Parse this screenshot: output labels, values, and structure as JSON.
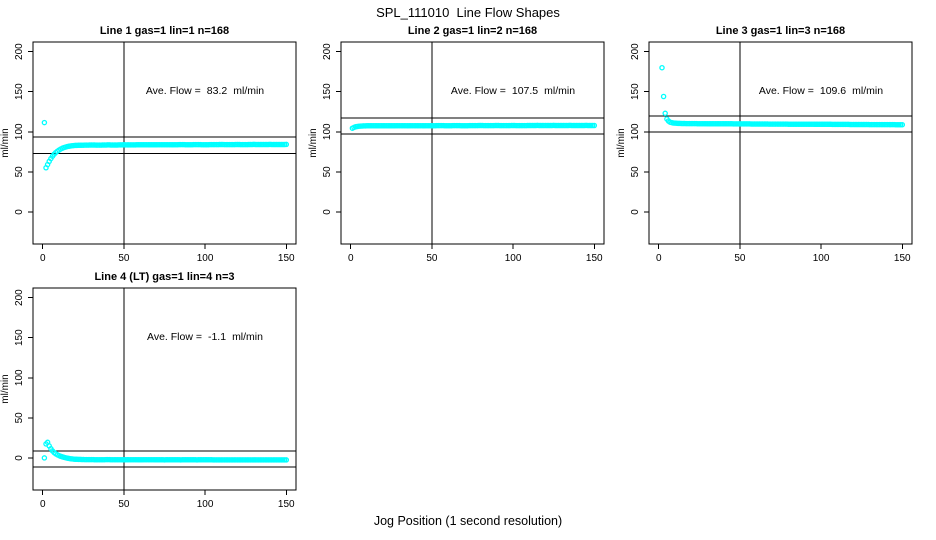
{
  "page": {
    "title": "SPL_111010  Line Flow Shapes",
    "xlabel": "Jog Position (1 second resolution)"
  },
  "palette": {
    "marker": "#00FFFF",
    "axis": "#000000",
    "background": "#FFFFFF"
  },
  "axes": {
    "xlim": [
      -6,
      156
    ],
    "ylim": [
      -40,
      212
    ],
    "xticks": [
      0,
      50,
      100,
      150
    ],
    "yticks": [
      0,
      50,
      100,
      150,
      200
    ],
    "ylabel": "ml/min"
  },
  "chart_data": [
    {
      "type": "scatter",
      "title": "Line 1 gas=1 lin=1 n=168",
      "ave_flow_label": "Ave. Flow =",
      "ave_flow_value": "83.2",
      "ave_flow_unit": "ml/min",
      "vline_x": 50,
      "hlines": [
        93.2,
        73.2
      ],
      "marker_color": "#00FFFF",
      "points": [
        [
          1,
          111.5
        ],
        [
          2,
          55
        ],
        [
          3,
          59
        ],
        [
          4,
          63
        ],
        [
          5,
          66.5
        ],
        [
          6,
          69.5
        ],
        [
          7,
          72
        ],
        [
          8,
          74
        ],
        [
          9,
          75.8
        ],
        [
          10,
          77.2
        ],
        [
          11,
          78.4
        ],
        [
          12,
          79.4
        ],
        [
          13,
          80.2
        ],
        [
          14,
          80.9
        ],
        [
          15,
          81.5
        ],
        [
          16,
          81.9
        ],
        [
          17,
          82.3
        ],
        [
          18,
          82.6
        ],
        [
          19,
          82.8
        ],
        [
          20,
          83
        ],
        [
          25,
          83.3
        ],
        [
          30,
          83.5
        ],
        [
          35,
          83.4
        ],
        [
          40,
          83.6
        ],
        [
          45,
          83.5
        ],
        [
          50,
          83.7
        ],
        [
          55,
          83.6
        ],
        [
          60,
          83.8
        ],
        [
          65,
          83.7
        ],
        [
          70,
          83.8
        ],
        [
          75,
          83.9
        ],
        [
          80,
          83.8
        ],
        [
          85,
          84
        ],
        [
          90,
          83.9
        ],
        [
          95,
          84
        ],
        [
          100,
          83.9
        ],
        [
          105,
          84
        ],
        [
          110,
          84.1
        ],
        [
          115,
          84
        ],
        [
          120,
          84.1
        ],
        [
          125,
          84
        ],
        [
          130,
          84.2
        ],
        [
          135,
          84.1
        ],
        [
          140,
          84.2
        ],
        [
          145,
          84.1
        ],
        [
          150,
          84.2
        ]
      ]
    },
    {
      "type": "scatter",
      "title": "Line 2 gas=1 lin=2 n=168",
      "ave_flow_label": "Ave. Flow =",
      "ave_flow_value": "107.5",
      "ave_flow_unit": "ml/min",
      "vline_x": 50,
      "hlines": [
        117.5,
        97.5
      ],
      "marker_color": "#00FFFF",
      "points": [
        [
          1,
          104.5
        ],
        [
          2,
          105.5
        ],
        [
          3,
          106.2
        ],
        [
          4,
          106.6
        ],
        [
          5,
          106.9
        ],
        [
          6,
          107.1
        ],
        [
          7,
          107.2
        ],
        [
          8,
          107.3
        ],
        [
          10,
          107.4
        ],
        [
          15,
          107.4
        ],
        [
          20,
          107.5
        ],
        [
          25,
          107.4
        ],
        [
          30,
          107.6
        ],
        [
          35,
          107.5
        ],
        [
          40,
          107.6
        ],
        [
          45,
          107.5
        ],
        [
          50,
          107.6
        ],
        [
          55,
          107.7
        ],
        [
          60,
          107.6
        ],
        [
          65,
          107.7
        ],
        [
          70,
          107.6
        ],
        [
          75,
          107.7
        ],
        [
          80,
          107.8
        ],
        [
          85,
          107.7
        ],
        [
          90,
          107.8
        ],
        [
          95,
          107.7
        ],
        [
          100,
          107.8
        ],
        [
          105,
          107.7
        ],
        [
          110,
          107.8
        ],
        [
          115,
          107.9
        ],
        [
          120,
          107.8
        ],
        [
          125,
          107.9
        ],
        [
          130,
          107.8
        ],
        [
          135,
          107.9
        ],
        [
          140,
          107.8
        ],
        [
          145,
          107.9
        ],
        [
          150,
          107.8
        ]
      ]
    },
    {
      "type": "scatter",
      "title": "Line 3 gas=1 lin=3 n=168",
      "ave_flow_label": "Ave. Flow =",
      "ave_flow_value": "109.6",
      "ave_flow_unit": "ml/min",
      "vline_x": 50,
      "hlines": [
        119.6,
        99.6
      ],
      "marker_color": "#00FFFF",
      "points": [
        [
          2,
          180
        ],
        [
          3,
          144
        ],
        [
          4,
          123
        ],
        [
          5,
          116
        ],
        [
          6,
          113.5
        ],
        [
          7,
          112
        ],
        [
          8,
          111.5
        ],
        [
          9,
          111
        ],
        [
          10,
          110.8
        ],
        [
          12,
          110.5
        ],
        [
          15,
          110.3
        ],
        [
          20,
          110.2
        ],
        [
          25,
          110.1
        ],
        [
          30,
          110
        ],
        [
          35,
          110
        ],
        [
          40,
          109.9
        ],
        [
          45,
          109.9
        ],
        [
          50,
          109.8
        ],
        [
          55,
          109.8
        ],
        [
          60,
          109.7
        ],
        [
          65,
          109.7
        ],
        [
          70,
          109.6
        ],
        [
          75,
          109.6
        ],
        [
          80,
          109.5
        ],
        [
          85,
          109.5
        ],
        [
          90,
          109.4
        ],
        [
          95,
          109.4
        ],
        [
          100,
          109.3
        ],
        [
          105,
          109.3
        ],
        [
          110,
          109.2
        ],
        [
          115,
          109.2
        ],
        [
          120,
          109.1
        ],
        [
          125,
          109.1
        ],
        [
          130,
          109
        ],
        [
          135,
          109
        ],
        [
          140,
          108.9
        ],
        [
          145,
          108.9
        ],
        [
          150,
          108.8
        ]
      ]
    },
    {
      "type": "scatter",
      "title": "Line 4 (LT) gas=1 lin=4 n=3",
      "ave_flow_label": "Ave. Flow =",
      "ave_flow_value": "-1.1",
      "ave_flow_unit": "ml/min",
      "vline_x": 50,
      "hlines": [
        8.9,
        -11.1
      ],
      "marker_color": "#00FFFF",
      "points": [
        [
          1,
          0
        ],
        [
          2,
          17.5
        ],
        [
          3,
          19.5
        ],
        [
          4,
          15
        ],
        [
          5,
          11.5
        ],
        [
          6,
          8.8
        ],
        [
          7,
          6.8
        ],
        [
          8,
          5.2
        ],
        [
          9,
          3.9
        ],
        [
          10,
          2.9
        ],
        [
          11,
          2.1
        ],
        [
          12,
          1.4
        ],
        [
          13,
          0.8
        ],
        [
          14,
          0.3
        ],
        [
          15,
          -0.2
        ],
        [
          16,
          -0.6
        ],
        [
          17,
          -0.9
        ],
        [
          18,
          -1.2
        ],
        [
          19,
          -1.5
        ],
        [
          20,
          -1.7
        ],
        [
          25,
          -2
        ],
        [
          30,
          -2.1
        ],
        [
          35,
          -2.2
        ],
        [
          40,
          -2.1
        ],
        [
          45,
          -2.2
        ],
        [
          50,
          -2.3
        ],
        [
          55,
          -2.2
        ],
        [
          60,
          -2.3
        ],
        [
          65,
          -2.2
        ],
        [
          70,
          -2.3
        ],
        [
          75,
          -2.4
        ],
        [
          80,
          -2.3
        ],
        [
          85,
          -2.4
        ],
        [
          90,
          -2.3
        ],
        [
          95,
          -2.4
        ],
        [
          100,
          -2.3
        ],
        [
          105,
          -2.4
        ],
        [
          110,
          -2.5
        ],
        [
          115,
          -2.4
        ],
        [
          120,
          -2.5
        ],
        [
          125,
          -2.4
        ],
        [
          130,
          -2.5
        ],
        [
          135,
          -2.4
        ],
        [
          140,
          -2.5
        ],
        [
          145,
          -2.4
        ],
        [
          150,
          -2.5
        ]
      ]
    }
  ]
}
